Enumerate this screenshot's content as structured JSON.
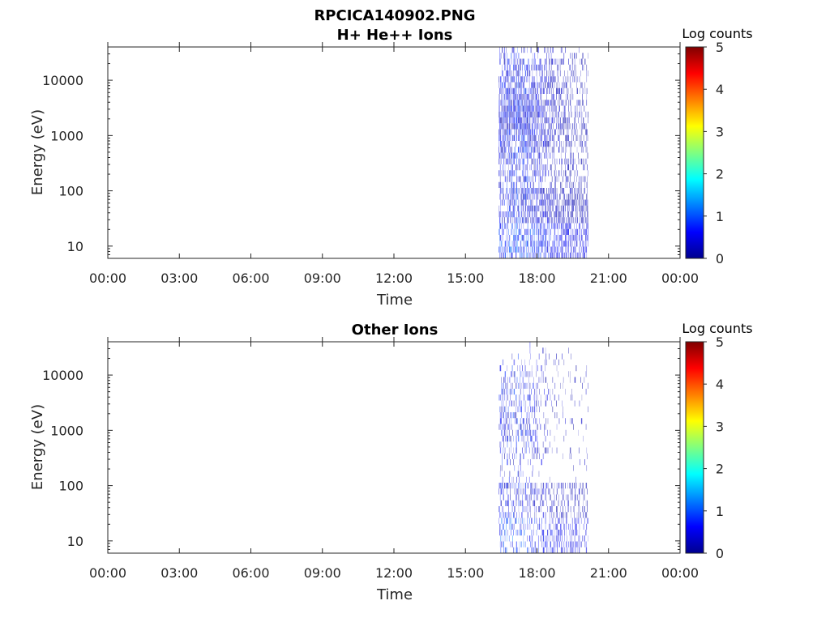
{
  "figure_title": "RPCICA140902.PNG",
  "colors": {
    "colormap": [
      "#00008f",
      "#0000ff",
      "#00ffff",
      "#ffff00",
      "#ff0000",
      "#800000"
    ],
    "axis": "#262626",
    "background": "#ffffff"
  },
  "chart_data": [
    {
      "type": "heatmap",
      "title": "H+ He++ Ions",
      "xlabel": "Time",
      "ylabel": "Energy (eV)",
      "yscale": "log",
      "ylim": [
        6,
        40000
      ],
      "xlim_hours": [
        0,
        24
      ],
      "x_ticks": [
        "00:00",
        "03:00",
        "06:00",
        "09:00",
        "12:00",
        "15:00",
        "18:00",
        "21:00",
        "00:00"
      ],
      "y_ticks": [
        "10",
        "100",
        "1000",
        "10000"
      ],
      "colorbar_label": "Log counts",
      "colorbar_ticks": [
        "0",
        "1",
        "2",
        "3",
        "4",
        "5"
      ],
      "clim": [
        0,
        5
      ],
      "data_interval_hours": [
        16.4,
        20.15
      ],
      "peak_time_hours": 17.2,
      "peak_energy_eV": 2000,
      "intensity_range_log_counts": [
        0,
        1
      ],
      "coverage": "dense"
    },
    {
      "type": "heatmap",
      "title": "Other Ions",
      "xlabel": "Time",
      "ylabel": "Energy (eV)",
      "yscale": "log",
      "ylim": [
        6,
        40000
      ],
      "xlim_hours": [
        0,
        24
      ],
      "x_ticks": [
        "00:00",
        "03:00",
        "06:00",
        "09:00",
        "12:00",
        "15:00",
        "18:00",
        "21:00",
        "00:00"
      ],
      "y_ticks": [
        "10",
        "100",
        "1000",
        "10000"
      ],
      "colorbar_label": "Log counts",
      "colorbar_ticks": [
        "0",
        "1",
        "2",
        "3",
        "4",
        "5"
      ],
      "clim": [
        0,
        5
      ],
      "data_interval_hours": [
        16.4,
        20.15
      ],
      "peak_time_hours": 17.0,
      "peak_energy_eV": 1500,
      "intensity_range_log_counts": [
        0,
        1
      ],
      "coverage": "sparse"
    }
  ]
}
